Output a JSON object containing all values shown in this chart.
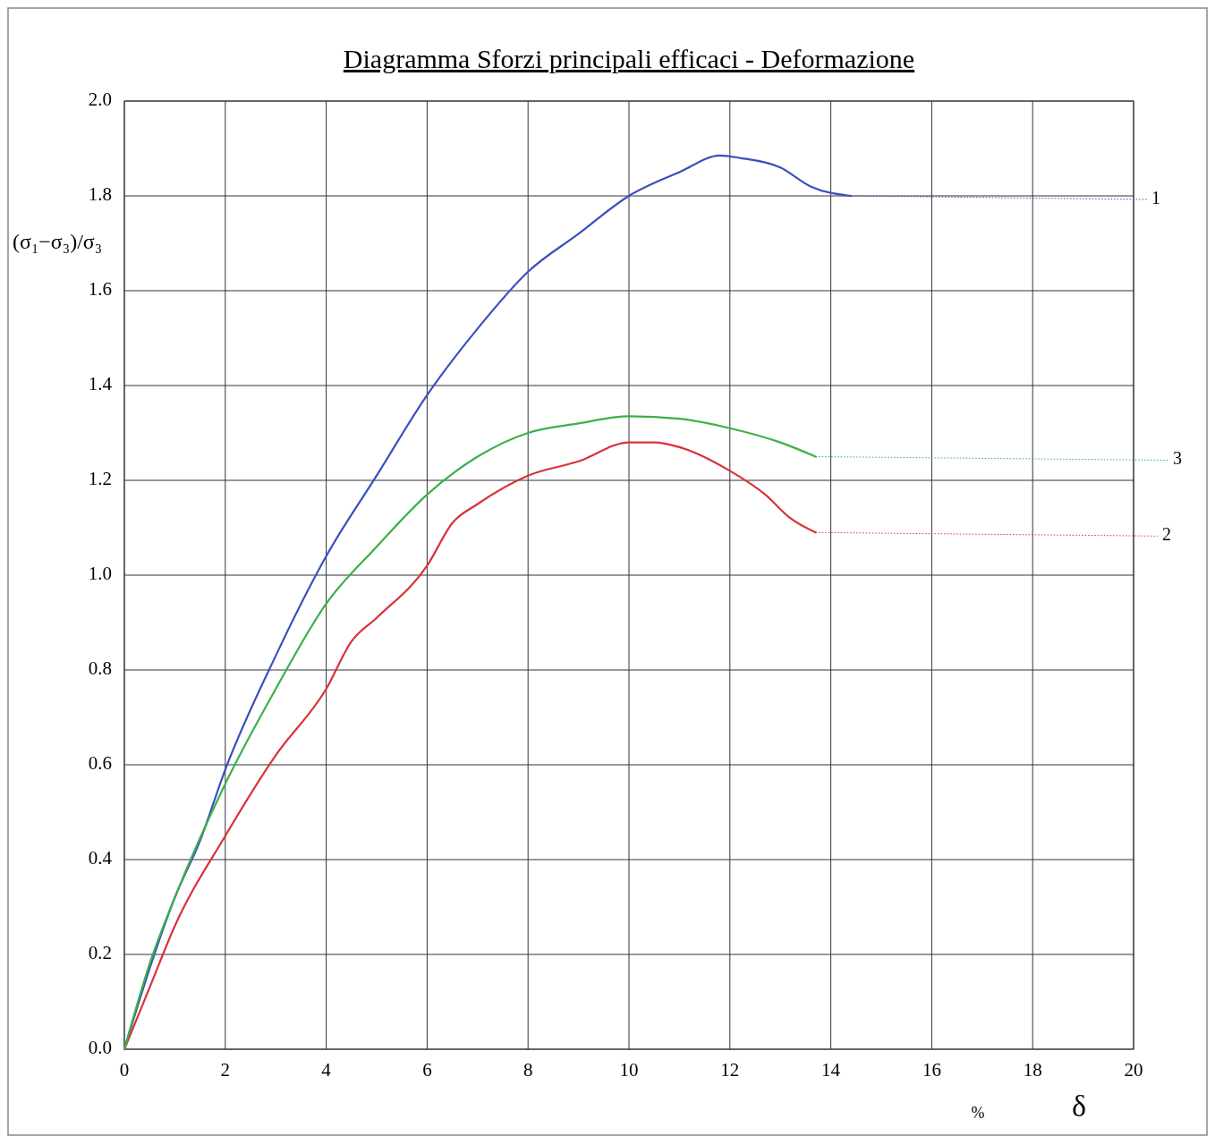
{
  "chart_data": {
    "type": "line",
    "title": "Diagramma  Sforzi principali efficaci - Deformazione",
    "xlabel": "δ",
    "ylabel": "(σ₁−σ₃)/σ₃",
    "annotations": [
      "%"
    ],
    "xlim": [
      0,
      20
    ],
    "xticks": [
      0,
      2,
      4,
      6,
      8,
      10,
      12,
      14,
      16,
      18,
      20
    ],
    "ylim": [
      0,
      2
    ],
    "yticks": [
      {
        "value": 0,
        "label": "0.0"
      },
      0.2,
      0.4,
      0.6,
      0.8,
      {
        "value": 1,
        "label": "1.0"
      },
      1.2,
      1.4,
      1.6,
      1.8,
      {
        "value": 2,
        "label": "2.0"
      }
    ],
    "grid": true,
    "marker": "none",
    "line_style": "solid",
    "series": [
      {
        "name": "1",
        "color": "#3a4fbf",
        "x": [
          0,
          0.5,
          1,
          1.5,
          2,
          3,
          4,
          5,
          6,
          7,
          8,
          9,
          10,
          11,
          11.8,
          12.2,
          13,
          13.6,
          14.4
        ],
        "values": [
          0,
          0.17,
          0.32,
          0.44,
          0.59,
          0.83,
          1.04,
          1.21,
          1.38,
          1.52,
          1.64,
          1.72,
          1.8,
          1.85,
          1.885,
          1.88,
          1.86,
          1.82,
          1.8
        ]
      },
      {
        "name": "2",
        "color": "#d9323a",
        "x": [
          0,
          0.5,
          1,
          2,
          3,
          4,
          4.5,
          5,
          6,
          6.5,
          7,
          8,
          9,
          10,
          10.5,
          11,
          12,
          12.7,
          13.2,
          13.7
        ],
        "values": [
          0,
          0.13,
          0.26,
          0.45,
          0.62,
          0.76,
          0.86,
          0.91,
          1.02,
          1.11,
          1.15,
          1.21,
          1.24,
          1.28,
          1.28,
          1.27,
          1.22,
          1.17,
          1.12,
          1.09
        ]
      },
      {
        "name": "3",
        "color": "#3bb04a",
        "x": [
          0,
          0.5,
          1,
          2,
          3,
          4,
          5,
          6,
          7,
          8,
          9,
          10,
          11,
          12,
          13,
          13.7
        ],
        "values": [
          0,
          0.18,
          0.32,
          0.56,
          0.76,
          0.94,
          1.06,
          1.17,
          1.25,
          1.3,
          1.32,
          1.335,
          1.33,
          1.31,
          1.28,
          1.25
        ]
      }
    ]
  }
}
